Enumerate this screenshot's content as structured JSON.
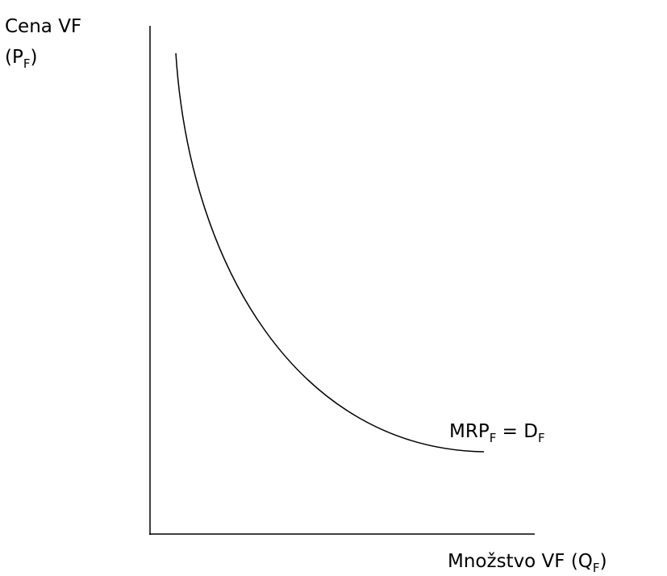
{
  "y_axis_label": {
    "line1": "Cena VF",
    "line2": [
      {
        "text": "(P"
      },
      {
        "sub": "F"
      },
      {
        "text": ")"
      }
    ]
  },
  "curve_label": [
    {
      "text": "MRP"
    },
    {
      "sub": "F"
    },
    {
      "text": " = D"
    },
    {
      "sub": "F"
    }
  ],
  "x_axis_label": [
    {
      "text": "Množstvo VF (Q"
    },
    {
      "sub": "F"
    },
    {
      "text": ")"
    }
  ]
}
